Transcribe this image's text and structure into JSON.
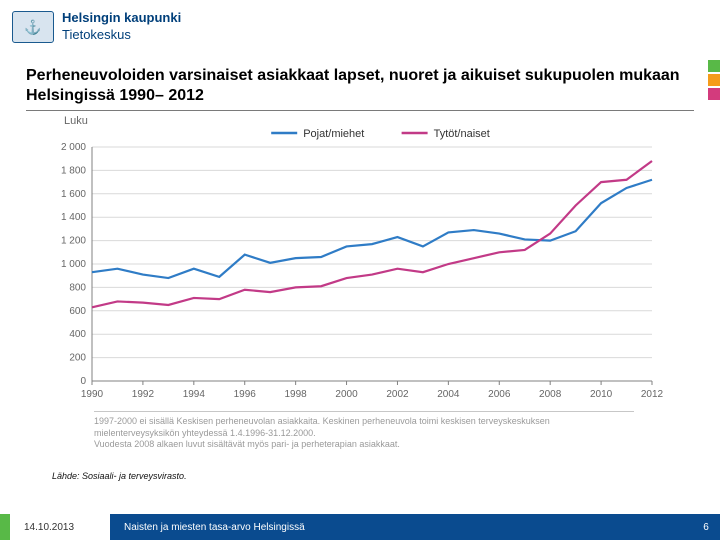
{
  "header": {
    "org_line1": "Helsingin kaupunki",
    "org_line2": "Tietokeskus",
    "org_color": "#003f7a"
  },
  "deco_bars": [
    "#58b947",
    "#f59c1a",
    "#d33b7d"
  ],
  "title": "Perheneuvoloiden varsinaiset asiakkaat lapset, nuoret ja aikuiset sukupuolen mukaan Helsingissä 1990– 2012",
  "chart": {
    "type": "line",
    "y_axis_label": "Luku",
    "xlim": [
      1990,
      2012
    ],
    "ylim": [
      0,
      2000
    ],
    "ytick_step": 200,
    "xtick_step": 2,
    "background_color": "#ffffff",
    "grid_color": "#d9d9d9",
    "axis_color": "#808080",
    "tick_fontsize": 10,
    "tick_color": "#666666",
    "line_width": 2.2,
    "legend": {
      "position": "top-center",
      "fontsize": 11
    },
    "series": [
      {
        "name": "Pojat/miehet",
        "color": "#2f7cc6",
        "x": [
          1990,
          1991,
          1992,
          1993,
          1994,
          1995,
          1996,
          1997,
          1998,
          1999,
          2000,
          2001,
          2002,
          2003,
          2004,
          2005,
          2006,
          2007,
          2008,
          2009,
          2010,
          2011,
          2012
        ],
        "y": [
          930,
          960,
          910,
          880,
          960,
          890,
          1080,
          1010,
          1050,
          1060,
          1150,
          1170,
          1230,
          1150,
          1270,
          1290,
          1260,
          1210,
          1200,
          1280,
          1520,
          1650,
          1720
        ]
      },
      {
        "name": "Tytöt/naiset",
        "color": "#c23a87",
        "x": [
          1990,
          1991,
          1992,
          1993,
          1994,
          1995,
          1996,
          1997,
          1998,
          1999,
          2000,
          2001,
          2002,
          2003,
          2004,
          2005,
          2006,
          2007,
          2008,
          2009,
          2010,
          2011,
          2012
        ],
        "y": [
          630,
          680,
          670,
          650,
          710,
          700,
          780,
          760,
          800,
          810,
          880,
          910,
          960,
          930,
          1000,
          1050,
          1100,
          1120,
          1260,
          1500,
          1700,
          1720,
          1880
        ]
      }
    ]
  },
  "chart_note_line1": "1997-2000 ei sisällä Keskisen perheneuvolan asiakkaita. Keskinen perheneuvola toimi keskisen terveyskeskuksen",
  "chart_note_line2": "mielenterveysyksikön yhteydessä 1.4.1996-31.12.2000.",
  "chart_note_line3": "Vuodesta 2008 alkaen luvut sisältävät myös pari- ja perheterapian asiakkaat.",
  "source": "Lähde: Sosiaali- ja terveysvirasto.",
  "footer": {
    "accent_color": "#58b947",
    "date": "14.10.2013",
    "bar_color": "#0a4b8f",
    "presentation_title": "Naisten ja miesten tasa-arvo Helsingissä",
    "page_number": "6"
  }
}
